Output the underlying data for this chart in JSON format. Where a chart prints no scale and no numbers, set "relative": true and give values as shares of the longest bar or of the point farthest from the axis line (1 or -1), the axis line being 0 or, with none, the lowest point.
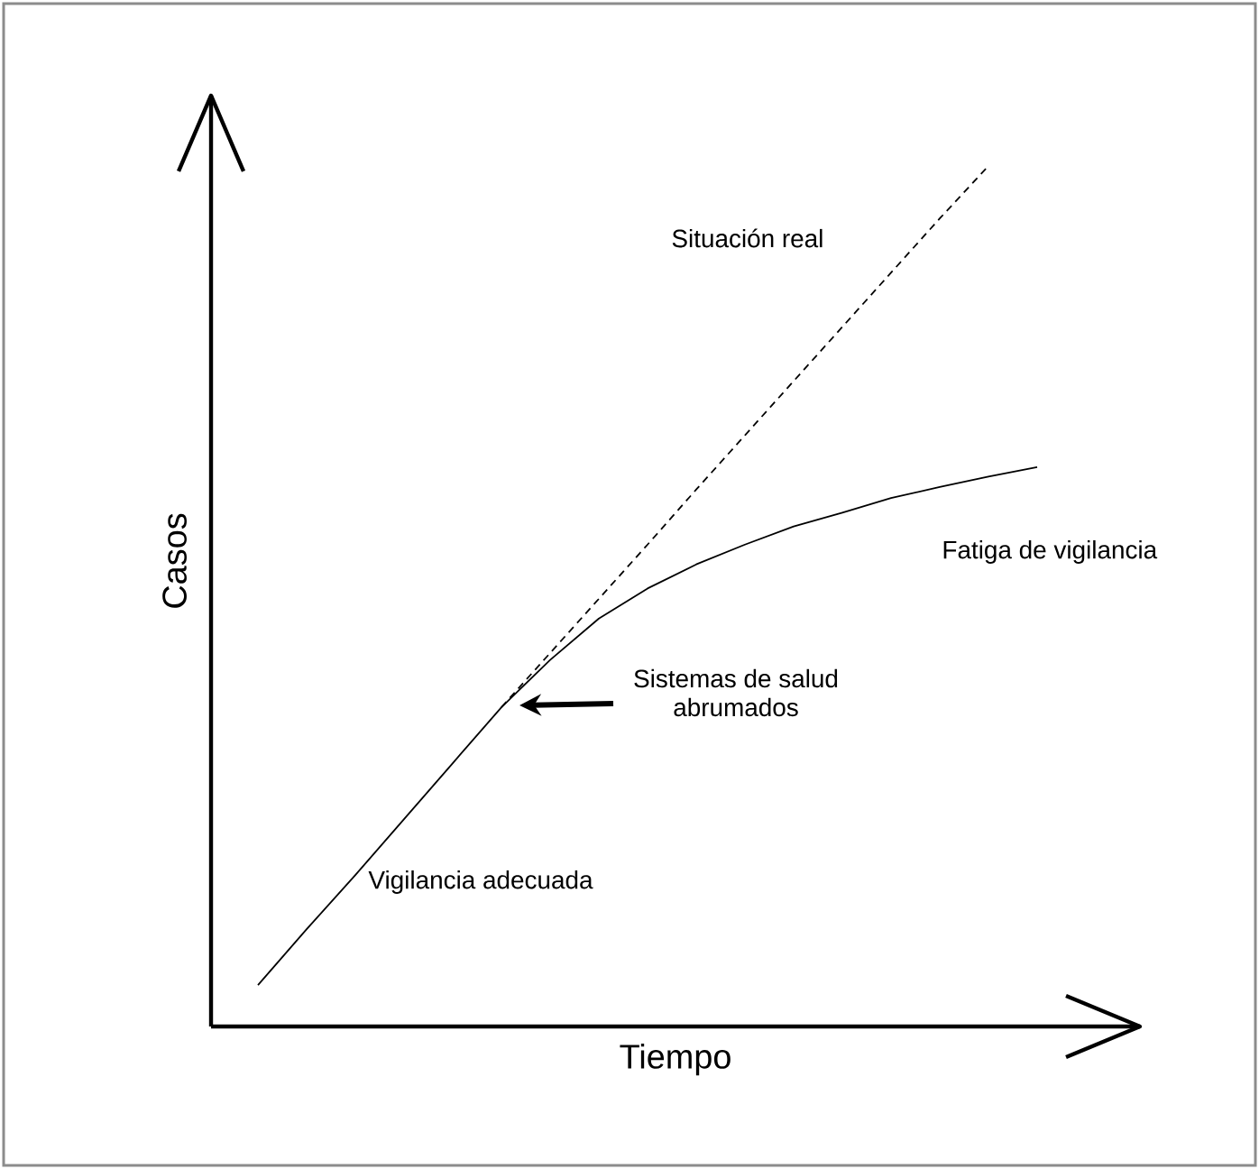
{
  "chart_data": {
    "type": "line",
    "relative": true,
    "xlabel": "Tiempo",
    "ylabel": "Casos",
    "marker": "none",
    "categories": [
      null,
      null,
      null,
      null,
      null,
      null,
      null,
      null,
      null,
      null,
      null,
      null,
      null,
      null,
      null,
      null,
      null
    ],
    "series": [
      {
        "color": "#000000",
        "line_style": "solid",
        "values": [
          0.048,
          0.113,
          0.176,
          0.241,
          0.306,
          0.371,
          0.426,
          0.474,
          0.509,
          0.537,
          0.56,
          0.581,
          0.597,
          0.614,
          0.627,
          0.639,
          0.65
        ]
      },
      {
        "color": "#000000",
        "line_style": "dashed",
        "values": [
          null,
          null,
          null,
          null,
          null,
          0.371,
          0.434,
          0.497,
          0.56,
          0.624,
          0.687,
          0.75,
          0.813,
          0.876,
          0.939,
          1.0,
          null
        ]
      }
    ],
    "annotations": [
      "Situación real",
      "Fatiga de vigilancia",
      "Sistemas de salud\nabrumados",
      "Vigilancia adecuada"
    ]
  }
}
